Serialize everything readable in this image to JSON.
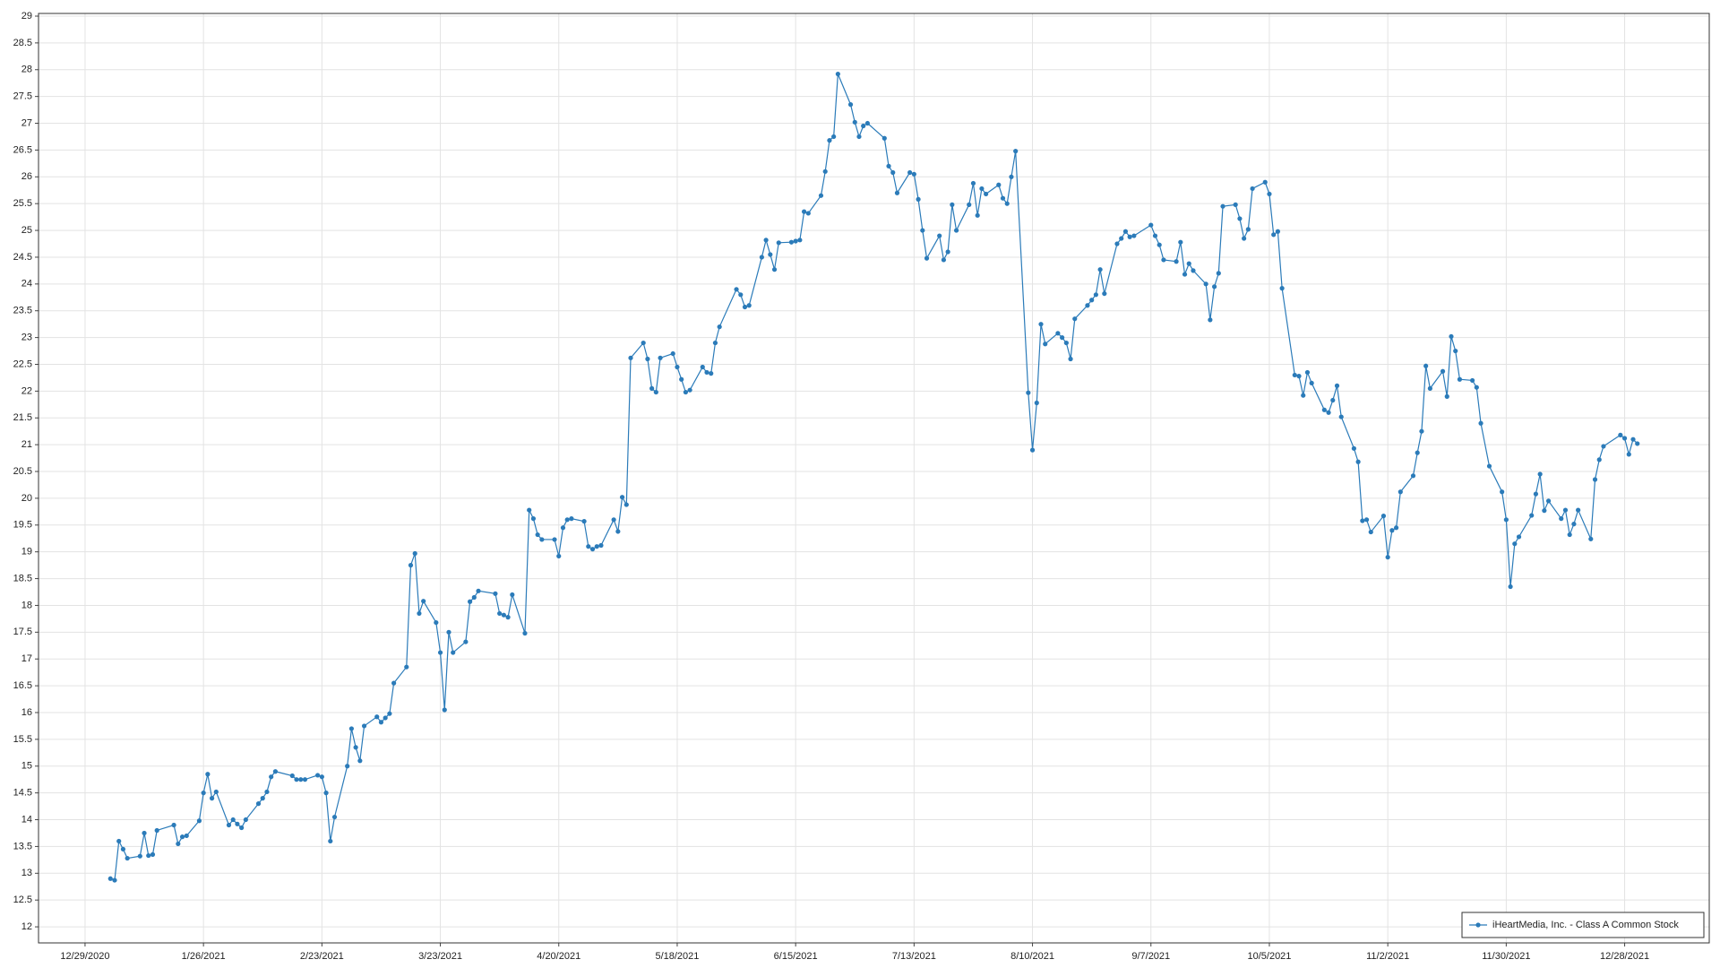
{
  "chart_data": {
    "type": "line",
    "x": [
      "1/4/2021",
      "1/5/2021",
      "1/6/2021",
      "1/7/2021",
      "1/8/2021",
      "1/11/2021",
      "1/12/2021",
      "1/13/2021",
      "1/14/2021",
      "1/15/2021",
      "1/19/2021",
      "1/20/2021",
      "1/21/2021",
      "1/22/2021",
      "1/25/2021",
      "1/26/2021",
      "1/27/2021",
      "1/28/2021",
      "1/29/2021",
      "2/1/2021",
      "2/2/2021",
      "2/3/2021",
      "2/4/2021",
      "2/5/2021",
      "2/8/2021",
      "2/9/2021",
      "2/10/2021",
      "2/11/2021",
      "2/12/2021",
      "2/16/2021",
      "2/17/2021",
      "2/18/2021",
      "2/19/2021",
      "2/22/2021",
      "2/23/2021",
      "2/24/2021",
      "2/25/2021",
      "2/26/2021",
      "3/1/2021",
      "3/2/2021",
      "3/3/2021",
      "3/4/2021",
      "3/5/2021",
      "3/8/2021",
      "3/9/2021",
      "3/10/2021",
      "3/11/2021",
      "3/12/2021",
      "3/15/2021",
      "3/16/2021",
      "3/17/2021",
      "3/18/2021",
      "3/19/2021",
      "3/22/2021",
      "3/23/2021",
      "3/24/2021",
      "3/25/2021",
      "3/26/2021",
      "3/29/2021",
      "3/30/2021",
      "3/31/2021",
      "4/1/2021",
      "4/5/2021",
      "4/6/2021",
      "4/7/2021",
      "4/8/2021",
      "4/9/2021",
      "4/12/2021",
      "4/13/2021",
      "4/14/2021",
      "4/15/2021",
      "4/16/2021",
      "4/19/2021",
      "4/20/2021",
      "4/21/2021",
      "4/22/2021",
      "4/23/2021",
      "4/26/2021",
      "4/27/2021",
      "4/28/2021",
      "4/29/2021",
      "4/30/2021",
      "5/3/2021",
      "5/4/2021",
      "5/5/2021",
      "5/6/2021",
      "5/7/2021",
      "5/10/2021",
      "5/11/2021",
      "5/12/2021",
      "5/13/2021",
      "5/14/2021",
      "5/17/2021",
      "5/18/2021",
      "5/19/2021",
      "5/20/2021",
      "5/21/2021",
      "5/24/2021",
      "5/25/2021",
      "5/26/2021",
      "5/27/2021",
      "5/28/2021",
      "6/1/2021",
      "6/2/2021",
      "6/3/2021",
      "6/4/2021",
      "6/7/2021",
      "6/8/2021",
      "6/9/2021",
      "6/10/2021",
      "6/11/2021",
      "6/14/2021",
      "6/15/2021",
      "6/16/2021",
      "6/17/2021",
      "6/18/2021",
      "6/21/2021",
      "6/22/2021",
      "6/23/2021",
      "6/24/2021",
      "6/25/2021",
      "6/28/2021",
      "6/29/2021",
      "6/30/2021",
      "7/1/2021",
      "7/2/2021",
      "7/6/2021",
      "7/7/2021",
      "7/8/2021",
      "7/9/2021",
      "7/12/2021",
      "7/13/2021",
      "7/14/2021",
      "7/15/2021",
      "7/16/2021",
      "7/19/2021",
      "7/20/2021",
      "7/21/2021",
      "7/22/2021",
      "7/23/2021",
      "7/26/2021",
      "7/27/2021",
      "7/28/2021",
      "7/29/2021",
      "7/30/2021",
      "8/2/2021",
      "8/3/2021",
      "8/4/2021",
      "8/5/2021",
      "8/6/2021",
      "8/9/2021",
      "8/10/2021",
      "8/11/2021",
      "8/12/2021",
      "8/13/2021",
      "8/16/2021",
      "8/17/2021",
      "8/18/2021",
      "8/19/2021",
      "8/20/2021",
      "8/23/2021",
      "8/24/2021",
      "8/25/2021",
      "8/26/2021",
      "8/27/2021",
      "8/30/2021",
      "8/31/2021",
      "9/1/2021",
      "9/2/2021",
      "9/3/2021",
      "9/7/2021",
      "9/8/2021",
      "9/9/2021",
      "9/10/2021",
      "9/13/2021",
      "9/14/2021",
      "9/15/2021",
      "9/16/2021",
      "9/17/2021",
      "9/20/2021",
      "9/21/2021",
      "9/22/2021",
      "9/23/2021",
      "9/24/2021",
      "9/27/2021",
      "9/28/2021",
      "9/29/2021",
      "9/30/2021",
      "10/1/2021",
      "10/4/2021",
      "10/5/2021",
      "10/6/2021",
      "10/7/2021",
      "10/8/2021",
      "10/11/2021",
      "10/12/2021",
      "10/13/2021",
      "10/14/2021",
      "10/15/2021",
      "10/18/2021",
      "10/19/2021",
      "10/20/2021",
      "10/21/2021",
      "10/22/2021",
      "10/25/2021",
      "10/26/2021",
      "10/27/2021",
      "10/28/2021",
      "10/29/2021",
      "11/1/2021",
      "11/2/2021",
      "11/3/2021",
      "11/4/2021",
      "11/5/2021",
      "11/8/2021",
      "11/9/2021",
      "11/10/2021",
      "11/11/2021",
      "11/12/2021",
      "11/15/2021",
      "11/16/2021",
      "11/17/2021",
      "11/18/2021",
      "11/19/2021",
      "11/22/2021",
      "11/23/2021",
      "11/24/2021",
      "11/26/2021",
      "11/29/2021",
      "11/30/2021",
      "12/1/2021",
      "12/2/2021",
      "12/3/2021",
      "12/6/2021",
      "12/7/2021",
      "12/8/2021",
      "12/9/2021",
      "12/10/2021",
      "12/13/2021",
      "12/14/2021",
      "12/15/2021",
      "12/16/2021",
      "12/17/2021",
      "12/20/2021",
      "12/21/2021",
      "12/22/2021",
      "12/23/2021",
      "12/27/2021",
      "12/28/2021",
      "12/29/2021",
      "12/30/2021",
      "12/31/2021"
    ],
    "series": [
      {
        "name": "iHeartMedia, Inc. - Class A Common Stock",
        "color": "#2b7bb9",
        "values": [
          12.9,
          12.87,
          13.6,
          13.45,
          13.28,
          13.32,
          13.75,
          13.33,
          13.35,
          13.8,
          13.9,
          13.55,
          13.68,
          13.7,
          13.98,
          14.5,
          14.85,
          14.4,
          14.52,
          13.9,
          14.0,
          13.92,
          13.85,
          14.0,
          14.3,
          14.4,
          14.52,
          14.8,
          14.9,
          14.82,
          14.75,
          14.75,
          14.75,
          14.83,
          14.8,
          14.5,
          13.6,
          14.05,
          15.0,
          15.7,
          15.35,
          15.1,
          15.75,
          15.92,
          15.82,
          15.9,
          15.98,
          16.55,
          16.85,
          18.75,
          18.97,
          17.85,
          18.08,
          17.68,
          17.12,
          16.05,
          17.5,
          17.12,
          17.32,
          18.07,
          18.15,
          18.27,
          18.22,
          17.85,
          17.82,
          17.78,
          18.2,
          17.48,
          19.78,
          19.62,
          19.32,
          19.23,
          19.23,
          18.92,
          19.45,
          19.6,
          19.62,
          19.57,
          19.1,
          19.05,
          19.1,
          19.12,
          19.6,
          19.38,
          20.02,
          19.88,
          22.62,
          22.9,
          22.6,
          22.05,
          21.98,
          22.62,
          22.7,
          22.45,
          22.22,
          21.98,
          22.02,
          22.45,
          22.35,
          22.33,
          22.9,
          23.2,
          23.9,
          23.8,
          23.57,
          23.6,
          24.5,
          24.82,
          24.55,
          24.27,
          24.77,
          24.78,
          24.8,
          24.82,
          25.35,
          25.32,
          25.65,
          26.1,
          26.68,
          26.75,
          27.92,
          27.35,
          27.02,
          26.75,
          26.95,
          27.0,
          26.72,
          26.2,
          26.08,
          25.7,
          26.08,
          26.05,
          25.58,
          25.0,
          24.48,
          24.9,
          24.45,
          24.6,
          25.48,
          25.0,
          25.48,
          25.88,
          25.28,
          25.78,
          25.68,
          25.85,
          25.6,
          25.5,
          26.0,
          26.48,
          21.97,
          20.9,
          21.78,
          23.25,
          22.88,
          23.08,
          23.0,
          22.9,
          22.6,
          23.35,
          23.6,
          23.7,
          23.8,
          24.27,
          23.82,
          24.75,
          24.85,
          24.98,
          24.88,
          24.9,
          25.1,
          24.9,
          24.73,
          24.45,
          24.42,
          24.78,
          24.18,
          24.38,
          24.25,
          24.0,
          23.33,
          23.95,
          24.2,
          25.45,
          25.48,
          25.22,
          24.85,
          25.02,
          25.78,
          25.9,
          25.68,
          24.92,
          24.98,
          23.92,
          22.3,
          22.28,
          21.92,
          22.35,
          22.15,
          21.65,
          21.6,
          21.83,
          22.1,
          21.52,
          20.93,
          20.68,
          19.58,
          19.6,
          19.37,
          19.67,
          18.9,
          19.4,
          19.45,
          20.12,
          20.42,
          20.85,
          21.25,
          22.47,
          22.05,
          22.37,
          21.9,
          23.02,
          22.75,
          22.22,
          22.2,
          22.07,
          21.4,
          20.6,
          20.12,
          19.6,
          18.35,
          19.15,
          19.28,
          19.68,
          20.08,
          20.45,
          19.77,
          19.95,
          19.62,
          19.78,
          19.32,
          19.52,
          19.78,
          19.24,
          20.35,
          20.72,
          20.97,
          21.18,
          21.12,
          20.82,
          21.1,
          21.02
        ]
      }
    ],
    "xlim": [
      "12/18/2020",
      "1/17/2022"
    ],
    "xticks": [
      "12/29/2020",
      "1/26/2021",
      "2/23/2021",
      "3/23/2021",
      "4/20/2021",
      "5/18/2021",
      "6/15/2021",
      "7/13/2021",
      "8/10/2021",
      "9/7/2021",
      "10/5/2021",
      "11/2/2021",
      "11/30/2021",
      "12/28/2021"
    ],
    "ylim": [
      11.7,
      29.05
    ],
    "yticks": [
      12,
      12.5,
      13,
      13.5,
      14,
      14.5,
      15,
      15.5,
      16,
      16.5,
      17,
      17.5,
      18,
      18.5,
      19,
      19.5,
      20,
      20.5,
      21,
      21.5,
      22,
      22.5,
      23,
      23.5,
      24,
      24.5,
      25,
      25.5,
      26,
      26.5,
      27,
      27.5,
      28,
      28.5,
      29
    ],
    "grid": true,
    "legend": "lower right"
  }
}
